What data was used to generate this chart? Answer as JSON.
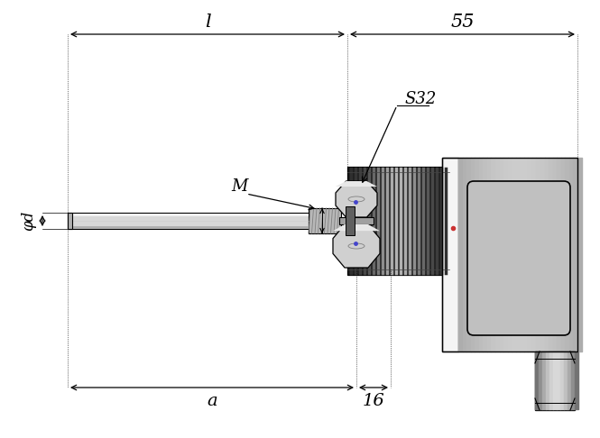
{
  "bg_color": "#ffffff",
  "lc": "#000000",
  "figsize": [
    6.65,
    4.86
  ],
  "dpi": 100,
  "labels": {
    "l": "l",
    "55": "55",
    "S32": "S32",
    "M": "M",
    "phi_d": "φd",
    "a": "a",
    "16": "16"
  },
  "colors": {
    "rod_fill": "#d8d8d8",
    "rod_light": "#f0f0f0",
    "rod_dark": "#b0b0b0",
    "thread_fill": "#b8b8b8",
    "hex_fill": "#d0d0d0",
    "hex_shade": "#a0a0a0",
    "hex_light": "#e8e8e8",
    "drum_dark": "#1e1e1e",
    "drum_stripe_light": "#c0c0c0",
    "drum_stripe_dark": "#505050",
    "conn_gray": "#c0c0c0",
    "conn_dark": "#888888",
    "conn_light": "#e0e0e0",
    "conn_white": "#f5f5f5",
    "fitting_fill": "#b0b0b0",
    "fitting_light": "#d8d8d8"
  }
}
